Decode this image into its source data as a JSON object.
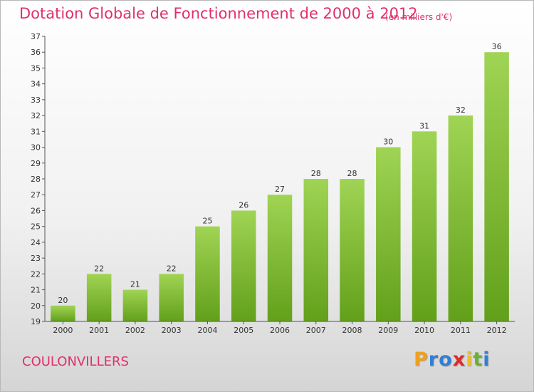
{
  "chart_data": {
    "type": "bar",
    "title": "Dotation Globale de Fonctionnement de 2000 à 2012",
    "subtitle": "(en milliers d'€)",
    "categories": [
      "2000",
      "2001",
      "2002",
      "2003",
      "2004",
      "2005",
      "2006",
      "2007",
      "2008",
      "2009",
      "2010",
      "2011",
      "2012"
    ],
    "values": [
      20,
      22,
      21,
      22,
      25,
      26,
      27,
      28,
      28,
      30,
      31,
      32,
      36
    ],
    "ylim": [
      19,
      37
    ],
    "yticks": [
      19,
      20,
      21,
      22,
      23,
      24,
      25,
      26,
      27,
      28,
      29,
      30,
      31,
      32,
      33,
      34,
      35,
      36,
      37
    ],
    "grid": false,
    "bar_color": "#7fc03a"
  },
  "place_name": "COULONVILLERS",
  "logo": {
    "letters": [
      "P",
      "r",
      "o",
      "x",
      "i",
      "t",
      "i"
    ],
    "colors": [
      "#f0a01e",
      "#2f7fd8",
      "#2f7fd8",
      "#e02a2a",
      "#f0c020",
      "#6ab233",
      "#2f7fd8"
    ]
  }
}
